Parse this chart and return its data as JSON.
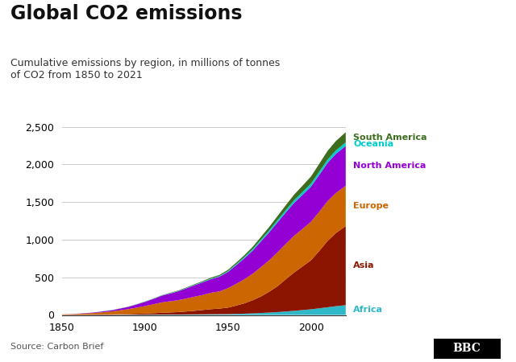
{
  "title": "Global CO2 emissions",
  "subtitle": "Cumulative emissions by region, in millions of tonnes\nof CO2 from 1850 to 2021",
  "source": "Source: Carbon Brief",
  "years": [
    1850,
    1855,
    1860,
    1865,
    1870,
    1875,
    1880,
    1885,
    1890,
    1895,
    1900,
    1905,
    1910,
    1915,
    1920,
    1925,
    1930,
    1935,
    1940,
    1945,
    1950,
    1955,
    1960,
    1965,
    1970,
    1975,
    1980,
    1985,
    1990,
    1995,
    2000,
    2005,
    2010,
    2015,
    2021
  ],
  "regions": [
    "Africa",
    "Asia",
    "Europe",
    "North America",
    "Oceania",
    "South America"
  ],
  "colors": {
    "Africa": "#2eb8c8",
    "Asia": "#8b1500",
    "Europe": "#cc6600",
    "North America": "#9400d3",
    "Oceania": "#00cccc",
    "South America": "#3d6e1e"
  },
  "label_colors": {
    "Africa": "#2eb8c8",
    "Asia": "#8b1500",
    "Europe": "#cc6600",
    "North America": "#9400d3",
    "Oceania": "#00cccc",
    "South America": "#3d6e1e"
  },
  "data": {
    "Africa": [
      0,
      0,
      0,
      0,
      1,
      1,
      1,
      2,
      2,
      3,
      3,
      4,
      4,
      5,
      5,
      6,
      7,
      8,
      9,
      10,
      11,
      14,
      17,
      21,
      26,
      32,
      38,
      46,
      55,
      65,
      75,
      88,
      102,
      116,
      130
    ],
    "Asia": [
      1,
      1,
      2,
      3,
      4,
      5,
      6,
      8,
      10,
      12,
      15,
      19,
      24,
      28,
      33,
      40,
      48,
      58,
      68,
      75,
      86,
      110,
      138,
      175,
      220,
      278,
      345,
      430,
      510,
      580,
      650,
      760,
      880,
      970,
      1050
    ],
    "Europe": [
      5,
      8,
      12,
      17,
      22,
      31,
      40,
      52,
      65,
      82,
      100,
      118,
      138,
      148,
      158,
      172,
      188,
      200,
      218,
      228,
      258,
      288,
      320,
      352,
      390,
      418,
      450,
      470,
      488,
      498,
      510,
      520,
      528,
      532,
      535
    ],
    "North America": [
      1,
      2,
      3,
      5,
      7,
      11,
      15,
      22,
      30,
      42,
      55,
      70,
      88,
      102,
      118,
      135,
      152,
      168,
      182,
      196,
      215,
      248,
      278,
      308,
      342,
      372,
      400,
      418,
      438,
      452,
      468,
      490,
      508,
      520,
      530
    ],
    "Oceania": [
      0,
      0,
      0,
      0,
      0,
      1,
      1,
      1,
      1,
      2,
      2,
      3,
      3,
      4,
      4,
      5,
      6,
      7,
      8,
      9,
      11,
      14,
      17,
      20,
      23,
      26,
      29,
      32,
      35,
      38,
      40,
      42,
      44,
      45,
      47
    ],
    "South America": [
      0,
      0,
      0,
      0,
      1,
      1,
      1,
      2,
      2,
      2,
      3,
      3,
      4,
      5,
      6,
      7,
      8,
      10,
      12,
      14,
      17,
      20,
      25,
      30,
      37,
      45,
      54,
      64,
      74,
      84,
      94,
      105,
      115,
      125,
      135
    ]
  },
  "xlim": [
    1850,
    2021
  ],
  "ylim": [
    0,
    2500
  ],
  "yticks": [
    0,
    500,
    1000,
    1500,
    2000,
    2500
  ],
  "xticks": [
    1850,
    1900,
    1950,
    2000
  ],
  "background_color": "#ffffff",
  "grid_color": "#cccccc",
  "bbc_box_color": "#000000",
  "bbc_text_color": "#ffffff"
}
